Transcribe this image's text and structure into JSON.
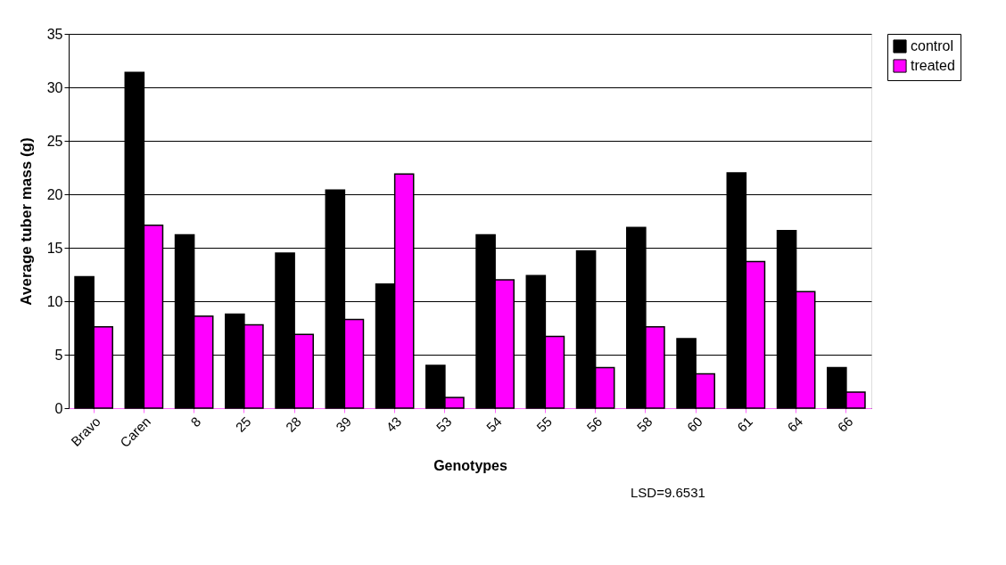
{
  "chart_data": {
    "type": "bar",
    "xlabel": "Genotypes",
    "ylabel": "Average tuber mass (g)",
    "categories": [
      "Bravo",
      "Caren",
      "8",
      "25",
      "28",
      "39",
      "43",
      "53",
      "54",
      "55",
      "56",
      "58",
      "60",
      "61",
      "64",
      "66"
    ],
    "series": [
      {
        "name": "control",
        "color": "#000000",
        "values": [
          12.3,
          31.4,
          16.2,
          8.8,
          14.5,
          20.4,
          11.6,
          4.0,
          16.2,
          12.4,
          14.7,
          16.9,
          6.5,
          22.0,
          16.6,
          3.8
        ]
      },
      {
        "name": "treated",
        "color": "#ff00ff",
        "values": [
          7.6,
          17.1,
          8.6,
          7.8,
          6.9,
          8.3,
          21.9,
          1.0,
          12.0,
          6.7,
          3.8,
          7.6,
          3.2,
          13.7,
          10.9,
          1.5
        ]
      }
    ],
    "ylim": [
      0,
      35
    ],
    "yticks": [
      0,
      5,
      10,
      15,
      20,
      25,
      30,
      35
    ],
    "grid": "y",
    "legend": "right",
    "annotations": [
      "LSD=9.6531"
    ]
  }
}
